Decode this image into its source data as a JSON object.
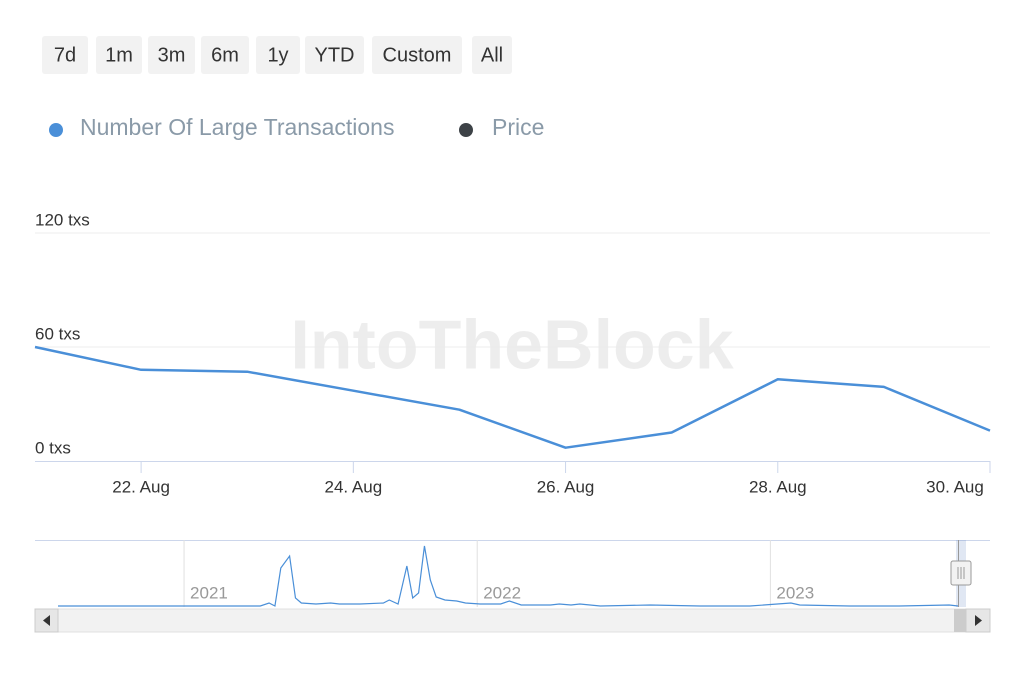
{
  "chart_data": {
    "type": "line",
    "range_buttons": [
      "7d",
      "1m",
      "3m",
      "6m",
      "1y",
      "YTD",
      "Custom",
      "All"
    ],
    "watermark": "IntoTheBlock",
    "categories": [
      null,
      "22. Aug",
      null,
      "24. Aug",
      null,
      "26. Aug",
      null,
      "28. Aug",
      null,
      "30. Aug"
    ],
    "series": [
      {
        "name": "Number Of Large Transactions",
        "color": "#4a8fd8",
        "values": [
          60,
          48,
          47,
          37,
          27,
          7,
          15,
          43,
          39,
          16
        ]
      },
      {
        "name": "Price",
        "color": "#3d4247",
        "values": [
          null,
          null,
          null,
          null,
          null,
          null,
          null,
          null,
          null,
          null
        ]
      }
    ],
    "ylim": [
      0,
      120
    ],
    "yticks": [
      {
        "value": 0,
        "label": "0 txs"
      },
      {
        "value": 60,
        "label": "60 txs"
      },
      {
        "value": 120,
        "label": "120 txs"
      }
    ],
    "grid": true,
    "navigator": {
      "x": [
        2020.57,
        2021.26,
        2021.29,
        2021.31,
        2021.33,
        2021.36,
        2021.38,
        2021.4,
        2021.45,
        2021.5,
        2021.53,
        2021.6,
        2021.68,
        2021.7,
        2021.73,
        2021.76,
        2021.78,
        2021.8,
        2021.82,
        2021.84,
        2021.86,
        2021.89,
        2021.93,
        2021.96,
        2022.01,
        2022.08,
        2022.11,
        2022.15,
        2022.25,
        2022.28,
        2022.32,
        2022.35,
        2022.42,
        2022.59,
        2022.76,
        2022.93,
        2023.07,
        2023.1,
        2023.27,
        2023.44,
        2023.61,
        2023.64
      ],
      "values": [
        0,
        0,
        3,
        0,
        38,
        50,
        8,
        3,
        2,
        3,
        2,
        2,
        3,
        6,
        2,
        40,
        8,
        13,
        60,
        26,
        9,
        6,
        5,
        3,
        2,
        2,
        5,
        1,
        1,
        2,
        1,
        2,
        0,
        1,
        0,
        0,
        3,
        1,
        0,
        0,
        1,
        0
      ],
      "xlim": [
        2020.57,
        2023.64
      ],
      "ylim": [
        0,
        66
      ],
      "xticks": [
        {
          "value": 2021,
          "label": "2021"
        },
        {
          "value": 2022,
          "label": "2022"
        },
        {
          "value": 2023,
          "label": "2023"
        }
      ]
    }
  }
}
